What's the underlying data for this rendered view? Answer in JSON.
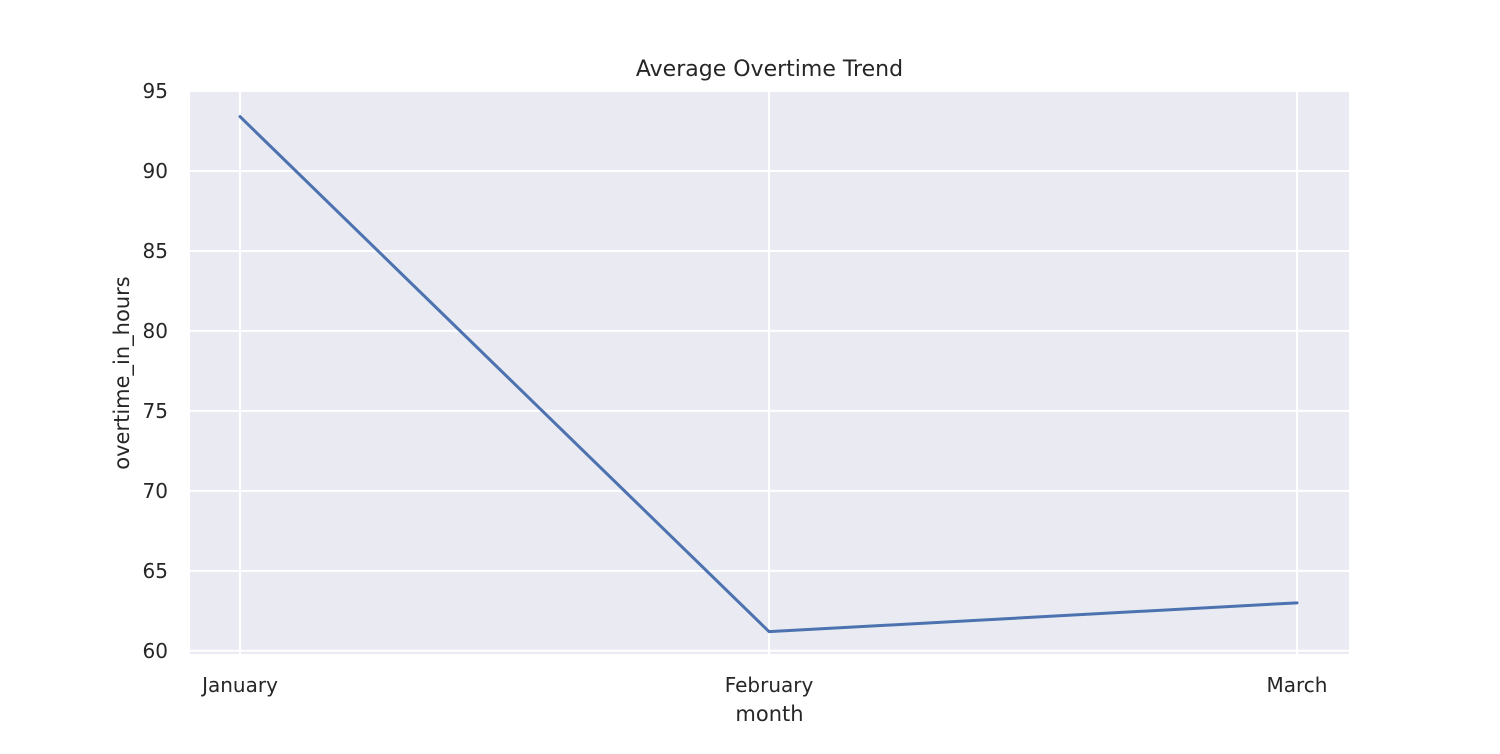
{
  "chart_data": {
    "type": "line",
    "title": "Average Overtime Trend",
    "xlabel": "month",
    "ylabel": "overtime_in_hours",
    "categories": [
      "January",
      "February",
      "March"
    ],
    "series": [
      {
        "values": [
          93.4,
          61.2,
          63.0
        ]
      }
    ],
    "ylim": [
      59.8,
      95.0
    ],
    "yticks": [
      60,
      65,
      70,
      75,
      80,
      85,
      90,
      95
    ],
    "grid": true,
    "colors": {
      "line": "#4c72b0",
      "plot_background": "#eaeaf2",
      "grid": "#ffffff",
      "text": "#262626"
    }
  }
}
